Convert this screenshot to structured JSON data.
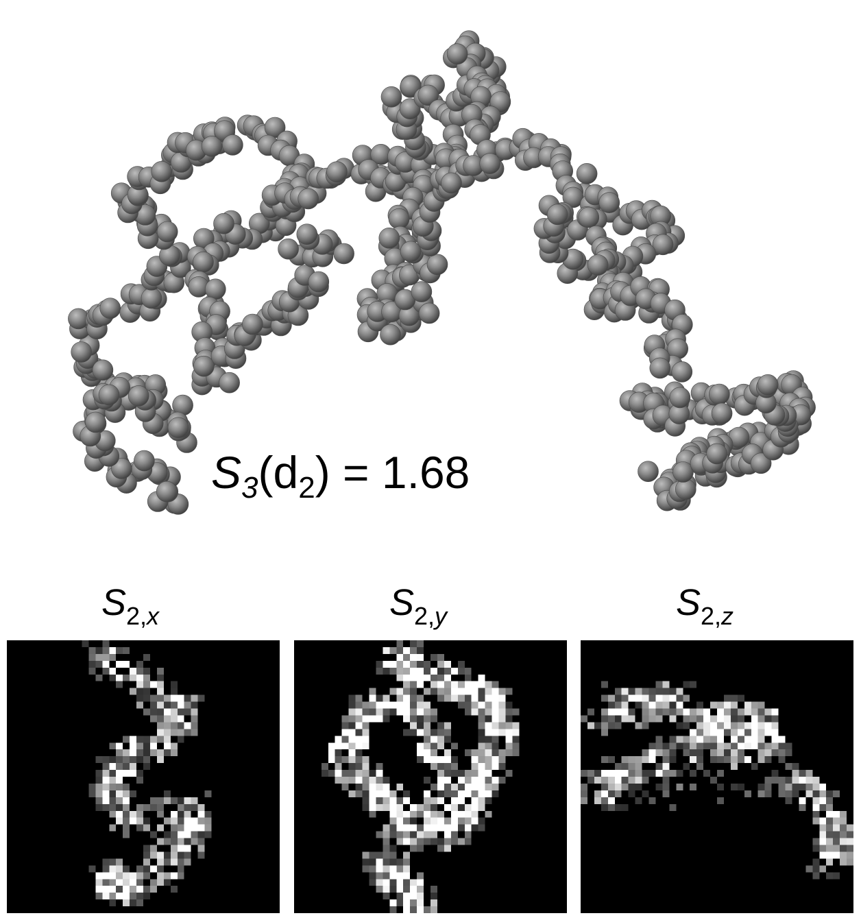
{
  "formula": {
    "symbol": "S",
    "symbol_sub": "3",
    "arg": "d",
    "arg_sub": "2",
    "value": "= 1.68"
  },
  "projections": [
    {
      "symbol": "S",
      "sub_num": "2,",
      "sub_axis": "x"
    },
    {
      "symbol": "S",
      "sub_num": "2,",
      "sub_axis": "y"
    },
    {
      "symbol": "S",
      "sub_num": "2,",
      "sub_axis": "z"
    }
  ],
  "colors": {
    "sphere": "#6e6e6e",
    "background": "#ffffff",
    "projection_background": "#000000"
  }
}
